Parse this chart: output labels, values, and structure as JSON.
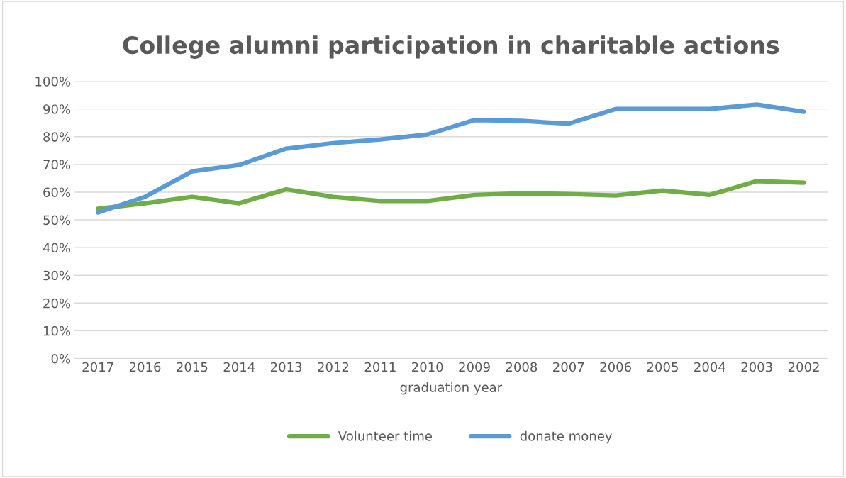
{
  "chart_data": {
    "type": "line",
    "title": "College alumni participation in charitable actions",
    "xlabel": "graduation year",
    "categories": [
      "2017",
      "2016",
      "2015",
      "2014",
      "2013",
      "2012",
      "2011",
      "2010",
      "2009",
      "2008",
      "2007",
      "2006",
      "2005",
      "2004",
      "2003",
      "2002"
    ],
    "series": [
      {
        "name": "Volunteer time",
        "color": "#70ad47",
        "values": [
          54,
          56,
          58.3,
          56,
          61,
          58.3,
          56.8,
          56.8,
          59,
          59.6,
          59.3,
          58.8,
          60.6,
          59,
          64,
          63.4
        ]
      },
      {
        "name": "donate money",
        "color": "#5b9bd5",
        "values": [
          52.7,
          58.3,
          67.5,
          69.8,
          75.7,
          77.7,
          79,
          80.8,
          86,
          85.7,
          84.7,
          90,
          90,
          90,
          91.6,
          89
        ]
      }
    ],
    "ylim": [
      0,
      100
    ],
    "yticks": [
      {
        "value": 0,
        "label": "0%"
      },
      {
        "value": 10,
        "label": "10%"
      },
      {
        "value": 20,
        "label": "20%"
      },
      {
        "value": 30,
        "label": "30%"
      },
      {
        "value": 40,
        "label": "40%"
      },
      {
        "value": 50,
        "label": "50%"
      },
      {
        "value": 60,
        "label": "60%"
      },
      {
        "value": 70,
        "label": "70%"
      },
      {
        "value": 80,
        "label": "80%"
      },
      {
        "value": 90,
        "label": "90%"
      },
      {
        "value": 100,
        "label": "100%"
      }
    ],
    "grid": "y",
    "legend": "bottom",
    "marker": "none",
    "line_style": "solid"
  }
}
